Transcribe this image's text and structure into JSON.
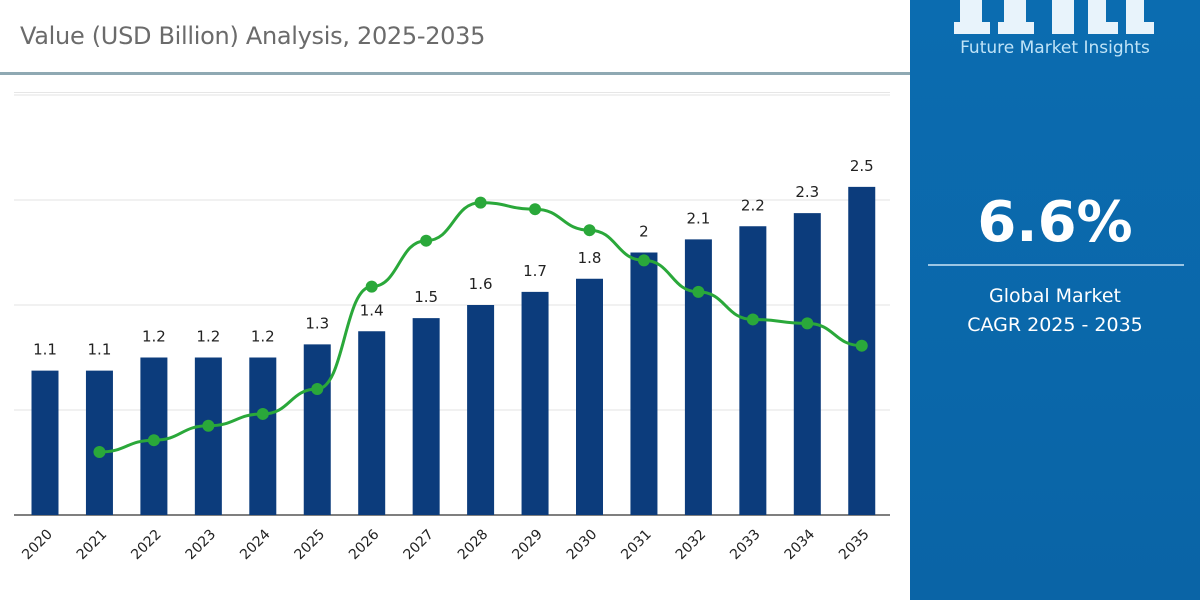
{
  "header": {
    "title": "Value (USD Billion) Analysis, 2025-2035"
  },
  "side_panel": {
    "brand": "Future Market Insights",
    "cagr_value": "6.6%",
    "cagr_label_line1": "Global Market",
    "cagr_label_line2": "CAGR 2025 - 2035",
    "background_color": "#0a6aad"
  },
  "chart_data": {
    "type": "bar",
    "title": "Value (USD Billion) Analysis, 2025-2035",
    "xlabel": "",
    "ylabel": "",
    "ylim": [
      0,
      3.2
    ],
    "grid": true,
    "categories": [
      "2020",
      "2021",
      "2022",
      "2023",
      "2024",
      "2025",
      "2026",
      "2027",
      "2028",
      "2029",
      "2030",
      "2031",
      "2032",
      "2033",
      "2034",
      "2035"
    ],
    "values": [
      1.1,
      1.1,
      1.2,
      1.2,
      1.2,
      1.3,
      1.4,
      1.5,
      1.6,
      1.7,
      1.8,
      2,
      2.1,
      2.2,
      2.3,
      2.5
    ],
    "data_labels": [
      "1.1",
      "1.1",
      "1.2",
      "1.2",
      "1.2",
      "1.3",
      "1.4",
      "1.5",
      "1.6",
      "1.7",
      "1.8",
      "2",
      "2.1",
      "2.2",
      "2.3",
      "2.5"
    ],
    "bar_color": "#0c3c7c",
    "line_series": {
      "type": "line",
      "color": "#2aa83a",
      "categories": [
        "2021",
        "2022",
        "2023",
        "2024",
        "2025",
        "2026",
        "2027",
        "2028",
        "2029",
        "2030",
        "2031",
        "2032",
        "2033",
        "2034",
        "2035"
      ],
      "values": [
        0.48,
        0.57,
        0.68,
        0.77,
        0.96,
        1.74,
        2.09,
        2.38,
        2.33,
        2.17,
        1.94,
        1.7,
        1.49,
        1.46,
        1.29
      ]
    }
  }
}
